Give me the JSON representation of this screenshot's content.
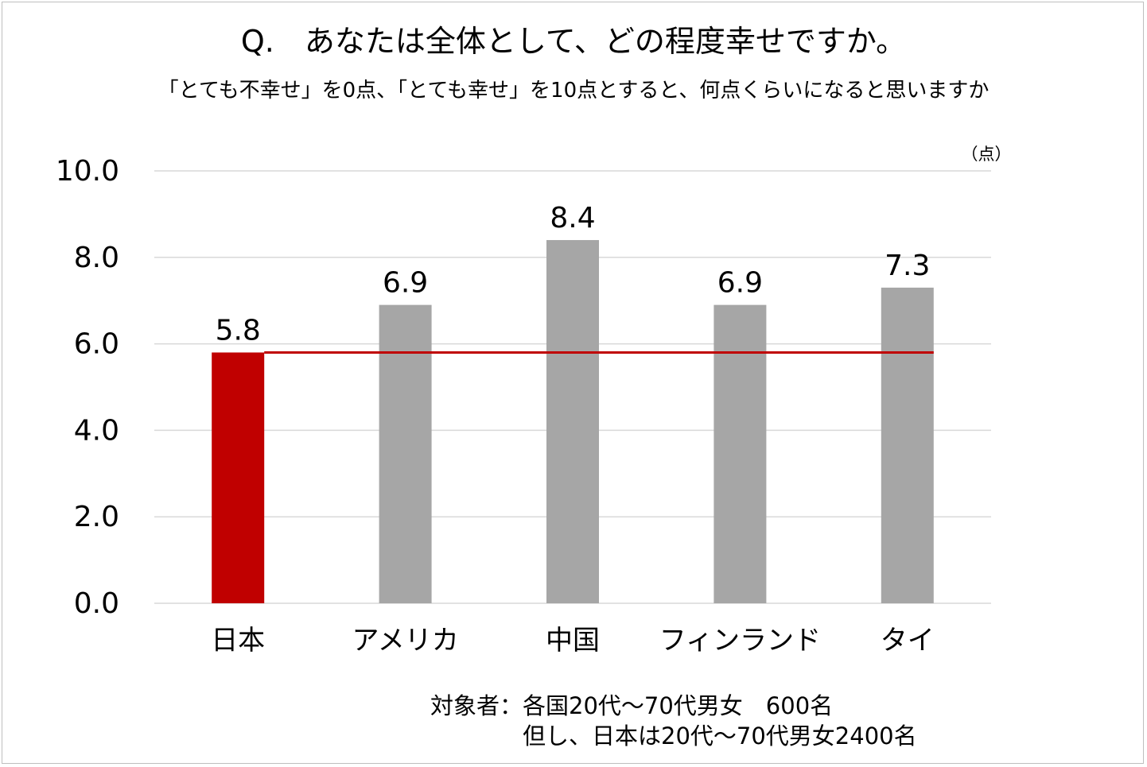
{
  "title": "Q.　あなたは全体として、どの程度幸せですか。",
  "subtitle": "「とても不幸せ」を0点、「とても幸せ」を10点とすると、何点くらいになると思いますか",
  "unit_label": "（点）",
  "notes": [
    "対象者：各国20代～70代男女　600名",
    "但し、日本は20代～70代男女2400名"
  ],
  "chart_data": {
    "type": "bar",
    "categories": [
      "日本",
      "アメリカ",
      "中国",
      "フィンランド",
      "タイ"
    ],
    "values": [
      5.8,
      6.9,
      8.4,
      6.9,
      7.3
    ],
    "value_labels": [
      "5.8",
      "6.9",
      "8.4",
      "6.9",
      "7.3"
    ],
    "ylim": [
      0,
      10
    ],
    "yticks": [
      0,
      2,
      4,
      6,
      8,
      10
    ],
    "ytick_labels": [
      "0.0",
      "2.0",
      "4.0",
      "6.0",
      "8.0",
      "10.0"
    ],
    "highlight_index": 0,
    "reference_line_value": 5.8,
    "grid": true,
    "xlabel": "",
    "ylabel": "（点）"
  },
  "colors": {
    "highlight_bar": "#c00000",
    "bar": "#a6a6a6",
    "reference_line": "#c00000",
    "grid": "#d9d9d9",
    "frame": "#bfbfbf"
  }
}
